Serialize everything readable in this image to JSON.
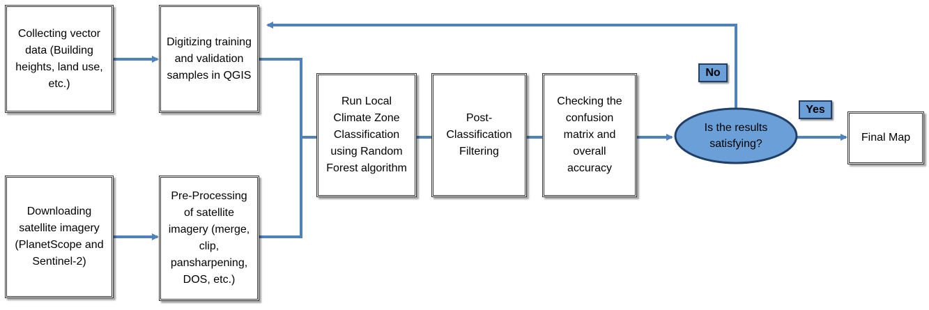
{
  "nodes": {
    "collect": "Collecting vector data (Building heights, land use, etc.)",
    "download": "Downloading satellite imagery (PlanetScope and Sentinel-2)",
    "digitize": "Digitizing training and validation samples in QGIS",
    "preprocess": "Pre-Processing of satellite imagery (merge, clip, pansharpening, DOS, etc.)",
    "classify": "Run Local Climate Zone Classification using Random Forest algorithm",
    "filter": "Post-Classification Filtering",
    "check": "Checking the confusion matrix and overall accuracy",
    "decision": "Is the results satisfying?",
    "final": "Final Map"
  },
  "labels": {
    "no": "No",
    "yes": "Yes"
  },
  "colors": {
    "connector": "#4f81bd",
    "decision_fill": "#6a9fd8",
    "decision_stroke": "#1f3f66"
  }
}
